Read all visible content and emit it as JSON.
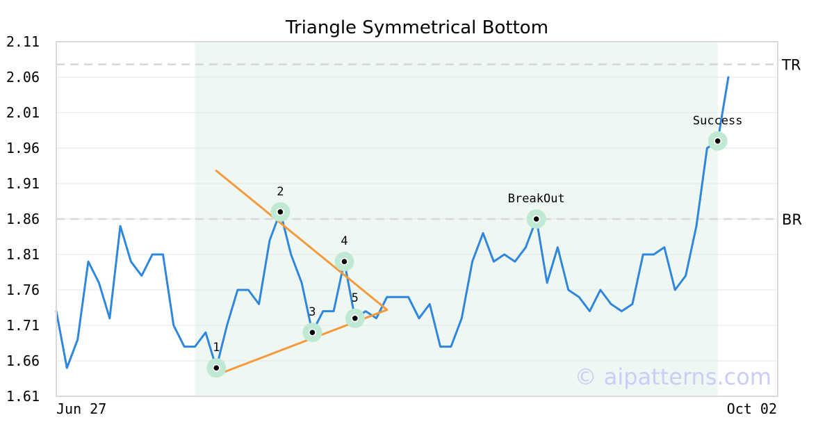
{
  "chart_data": {
    "type": "line",
    "title": "Triangle Symmetrical Bottom",
    "xlabel": "",
    "ylabel": "",
    "ylim": [
      1.61,
      2.11
    ],
    "y_ticks": [
      "1.61",
      "1.66",
      "1.71",
      "1.76",
      "1.81",
      "1.86",
      "1.91",
      "1.96",
      "2.01",
      "2.06",
      "2.11"
    ],
    "x_tick_labels": [
      "Jun 27",
      "Oct 02"
    ],
    "grid": true,
    "series": [
      {
        "color": "#2f86dd",
        "values": [
          1.73,
          1.65,
          1.69,
          1.8,
          1.77,
          1.72,
          1.85,
          1.8,
          1.78,
          1.81,
          1.81,
          1.71,
          1.68,
          1.68,
          1.7,
          1.65,
          1.71,
          1.76,
          1.76,
          1.74,
          1.83,
          1.87,
          1.81,
          1.77,
          1.7,
          1.73,
          1.73,
          1.8,
          1.72,
          1.73,
          1.72,
          1.75,
          1.75,
          1.75,
          1.72,
          1.74,
          1.68,
          1.68,
          1.72,
          1.8,
          1.84,
          1.8,
          1.81,
          1.8,
          1.82,
          1.86,
          1.77,
          1.82,
          1.76,
          1.75,
          1.73,
          1.76,
          1.74,
          1.73,
          1.74,
          1.81,
          1.81,
          1.82,
          1.76,
          1.78,
          1.85,
          1.96,
          1.97,
          2.06
        ]
      }
    ],
    "reference_lines": [
      {
        "label": "TR",
        "value": 2.078
      },
      {
        "label": "BR",
        "value": 1.86
      }
    ],
    "pattern_region": {
      "start_index": 13,
      "end_index": 62,
      "color": "#eef7f2"
    },
    "pattern_points": [
      {
        "label": "1",
        "index": 15,
        "value": 1.65
      },
      {
        "label": "2",
        "index": 21,
        "value": 1.87
      },
      {
        "label": "3",
        "index": 24,
        "value": 1.7
      },
      {
        "label": "4",
        "index": 27,
        "value": 1.8
      },
      {
        "label": "5",
        "index": 28,
        "value": 1.72
      },
      {
        "label": "BreakOut",
        "index": 45,
        "value": 1.86
      },
      {
        "label": "Success",
        "index": 62,
        "value": 1.97
      }
    ],
    "trend_lines": [
      {
        "color": "#f59a3c",
        "from": {
          "index": 15,
          "value": 1.928
        },
        "to": {
          "index": 31,
          "value": 1.732
        }
      },
      {
        "color": "#f59a3c",
        "from": {
          "index": 15,
          "value": 1.64
        },
        "to": {
          "index": 31,
          "value": 1.732
        }
      }
    ]
  },
  "watermark": "© aipatterns.com",
  "colors": {
    "line": "#2f86dd",
    "trend": "#f59a3c",
    "marker_halo": "#bfe9d2",
    "region": "#eef7f2",
    "grid": "#e6e6e6",
    "reference": "#d6d6d6"
  }
}
